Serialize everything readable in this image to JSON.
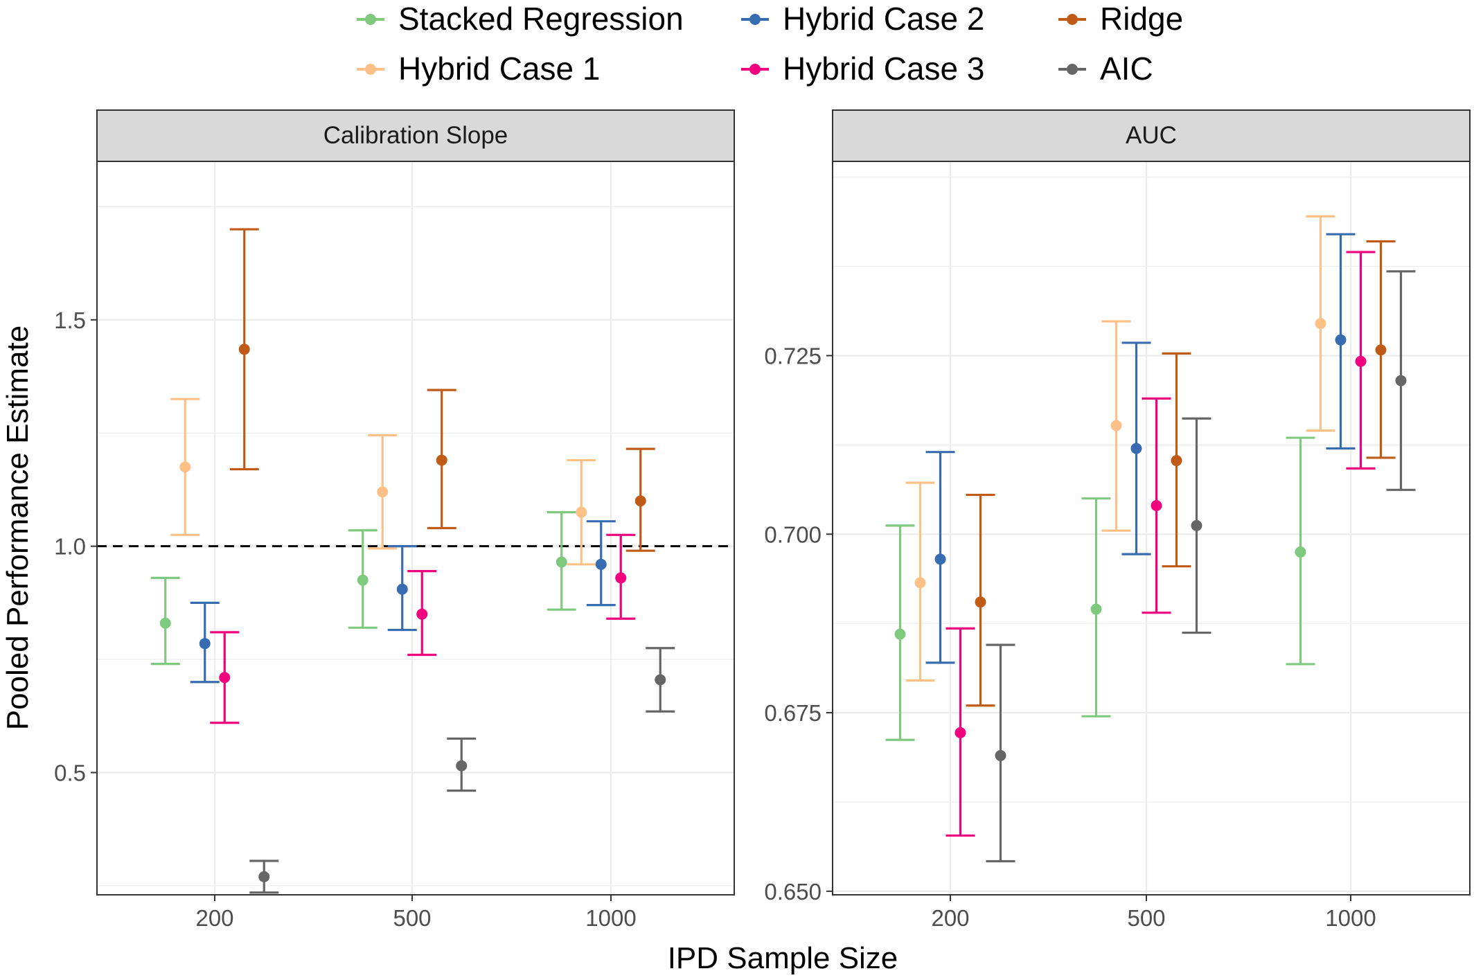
{
  "legend": {
    "items": [
      {
        "label": "Stacked Regression",
        "color": "#7fc97f"
      },
      {
        "label": "Hybrid Case 1",
        "color": "#fdc086"
      },
      {
        "label": "Hybrid Case 2",
        "color": "#386cb0"
      },
      {
        "label": "Hybrid Case 3",
        "color": "#f0027f"
      },
      {
        "label": "Ridge",
        "color": "#bf5b17"
      },
      {
        "label": "AIC",
        "color": "#666666"
      }
    ]
  },
  "xlabel": "IPD Sample Size",
  "ylabel": "Pooled Performance Estimate",
  "chart_data": [
    {
      "type": "scatter",
      "panel_title": "Calibration Slope",
      "categories": [
        "200",
        "500",
        "1000"
      ],
      "ylim": [
        0.23,
        1.85
      ],
      "yticks": [
        0.5,
        1.0,
        1.5
      ],
      "ytick_labels": [
        "0.5",
        "1.0",
        "1.5"
      ],
      "reference_line": 1.0,
      "grid": true,
      "series": [
        {
          "name": "Stacked Regression",
          "color": "#7fc97f",
          "values": [
            0.83,
            0.925,
            0.965
          ],
          "lower": [
            0.74,
            0.82,
            0.86
          ],
          "upper": [
            0.93,
            1.035,
            1.075
          ]
        },
        {
          "name": "Hybrid Case 1",
          "color": "#fdc086",
          "values": [
            1.175,
            1.12,
            1.075
          ],
          "lower": [
            1.025,
            0.995,
            0.96
          ],
          "upper": [
            1.325,
            1.245,
            1.19
          ]
        },
        {
          "name": "Hybrid Case 2",
          "color": "#386cb0",
          "values": [
            0.785,
            0.905,
            0.96
          ],
          "lower": [
            0.7,
            0.815,
            0.87
          ],
          "upper": [
            0.875,
            1.0,
            1.055
          ]
        },
        {
          "name": "Hybrid Case 3",
          "color": "#f0027f",
          "values": [
            0.71,
            0.85,
            0.93
          ],
          "lower": [
            0.61,
            0.76,
            0.84
          ],
          "upper": [
            0.81,
            0.945,
            1.025
          ]
        },
        {
          "name": "Ridge",
          "color": "#bf5b17",
          "values": [
            1.435,
            1.19,
            1.1
          ],
          "lower": [
            1.17,
            1.04,
            0.99
          ],
          "upper": [
            1.7,
            1.345,
            1.215
          ]
        },
        {
          "name": "AIC",
          "color": "#666666",
          "values": [
            0.27,
            0.515,
            0.705
          ],
          "lower": [
            0.235,
            0.46,
            0.635
          ],
          "upper": [
            0.305,
            0.575,
            0.775
          ]
        }
      ]
    },
    {
      "type": "scatter",
      "panel_title": "AUC",
      "categories": [
        "200",
        "500",
        "1000"
      ],
      "ylim": [
        0.6495,
        0.7522
      ],
      "yticks": [
        0.65,
        0.675,
        0.7,
        0.725
      ],
      "ytick_labels": [
        "0.650",
        "0.675",
        "0.700",
        "0.725"
      ],
      "grid": true,
      "series": [
        {
          "name": "Stacked Regression",
          "color": "#7fc97f",
          "values": [
            0.686,
            0.6895,
            0.6975
          ],
          "lower": [
            0.6712,
            0.6745,
            0.6818
          ],
          "upper": [
            0.7012,
            0.705,
            0.7135
          ]
        },
        {
          "name": "Hybrid Case 1",
          "color": "#fdc086",
          "values": [
            0.6932,
            0.7152,
            0.7295
          ],
          "lower": [
            0.6795,
            0.7005,
            0.7145
          ],
          "upper": [
            0.7072,
            0.7298,
            0.7445
          ]
        },
        {
          "name": "Hybrid Case 2",
          "color": "#386cb0",
          "values": [
            0.6965,
            0.712,
            0.7272
          ],
          "lower": [
            0.682,
            0.6972,
            0.712
          ],
          "upper": [
            0.7115,
            0.7268,
            0.742
          ]
        },
        {
          "name": "Hybrid Case 3",
          "color": "#f0027f",
          "values": [
            0.6722,
            0.704,
            0.7242
          ],
          "lower": [
            0.6578,
            0.689,
            0.7092
          ],
          "upper": [
            0.6868,
            0.719,
            0.7395
          ]
        },
        {
          "name": "Ridge",
          "color": "#bf5b17",
          "values": [
            0.6905,
            0.7103,
            0.7258
          ],
          "lower": [
            0.676,
            0.6955,
            0.7107
          ],
          "upper": [
            0.7055,
            0.7253,
            0.741
          ]
        },
        {
          "name": "AIC",
          "color": "#666666",
          "values": [
            0.669,
            0.7012,
            0.7215
          ],
          "lower": [
            0.6542,
            0.6862,
            0.7062
          ],
          "upper": [
            0.6845,
            0.7162,
            0.7368
          ]
        }
      ]
    }
  ]
}
